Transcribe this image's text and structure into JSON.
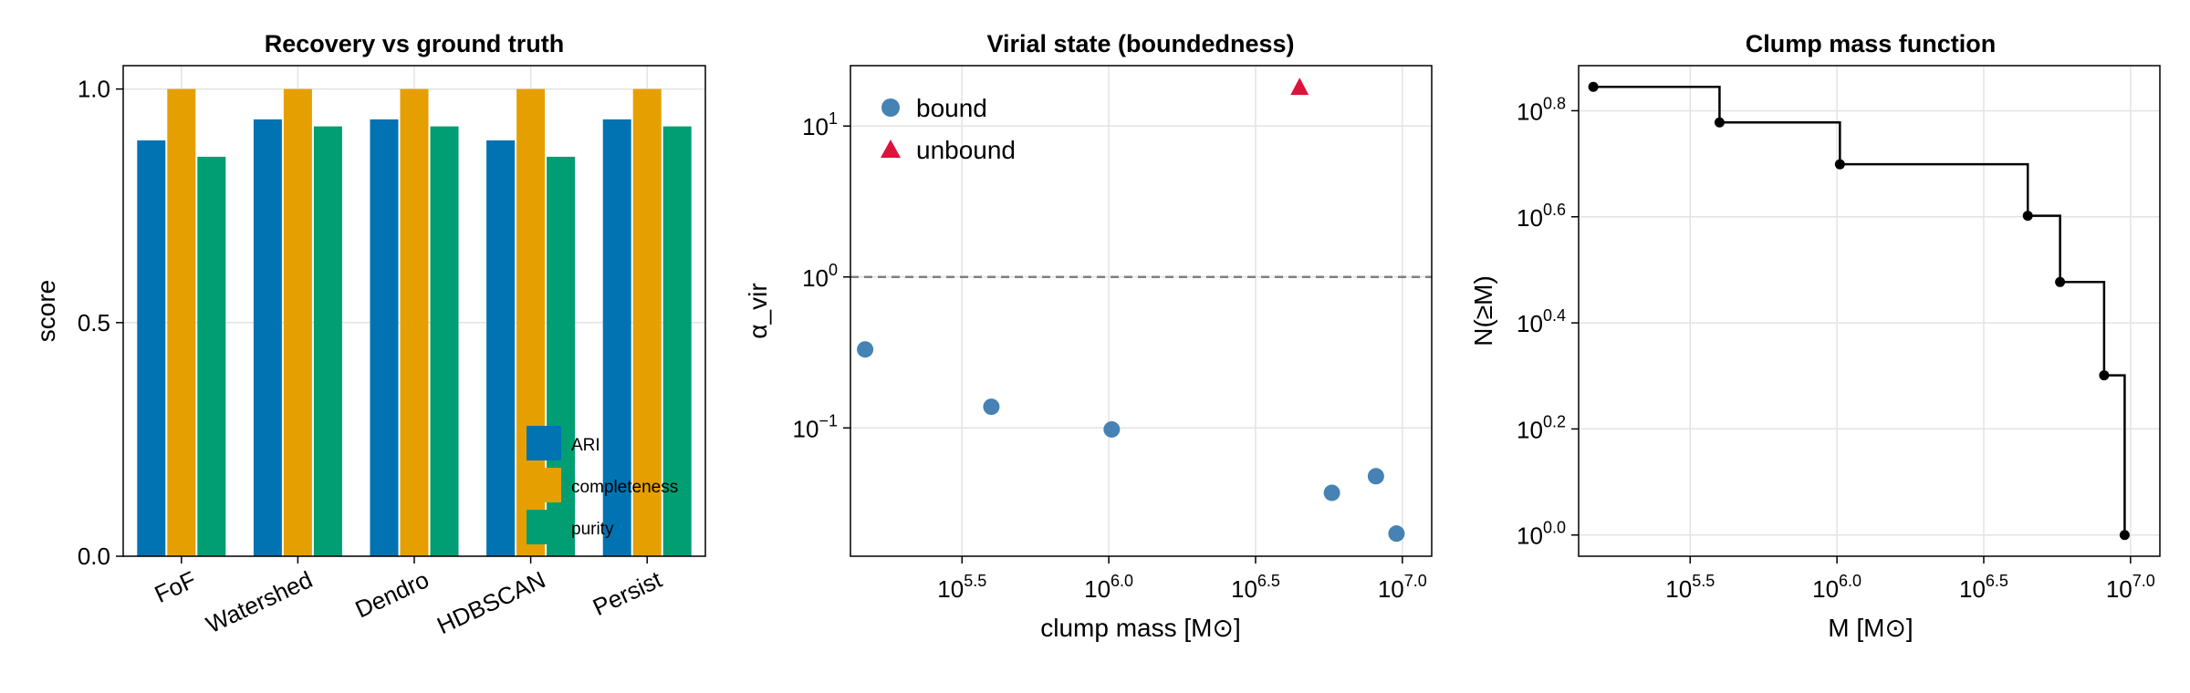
{
  "colors": {
    "ari": "#0173b2",
    "completeness": "#e69f00",
    "purity": "#029e73",
    "bound": "#4682b4",
    "unbound": "#dc143c",
    "step": "#000000",
    "threshold": "#808080"
  },
  "chart_data": [
    {
      "type": "bar",
      "title": "Recovery vs ground truth",
      "xlabel": "",
      "ylabel": "score",
      "ylim": [
        0,
        1.05
      ],
      "yticks": [
        0.0,
        0.5,
        1.0
      ],
      "ytick_labels": [
        "0.0",
        "0.5",
        "1.0"
      ],
      "categories": [
        "FoF",
        "Watershed",
        "Dendro",
        "HDBSCAN",
        "Persist"
      ],
      "series": [
        {
          "name": "ARI",
          "color": "#0173b2",
          "values": [
            0.89,
            0.935,
            0.935,
            0.89,
            0.935
          ]
        },
        {
          "name": "completeness",
          "color": "#e69f00",
          "values": [
            1.0,
            1.0,
            1.0,
            1.0,
            1.0
          ]
        },
        {
          "name": "purity",
          "color": "#029e73",
          "values": [
            0.855,
            0.92,
            0.92,
            0.855,
            0.92
          ]
        }
      ],
      "legend": "bottom-right",
      "grid": true
    },
    {
      "type": "scatter",
      "title": "Virial state (boundedness)",
      "xlabel": "clump mass [M⊙]",
      "ylabel": "α_vir",
      "x_scale": "log10",
      "y_scale": "log10",
      "xlim": [
        5.12,
        7.1
      ],
      "ylim": [
        -1.85,
        1.4
      ],
      "xticks": [
        5.5,
        6.0,
        6.5,
        7.0
      ],
      "xtick_labels": [
        {
          "base": "10",
          "exp": "5.5"
        },
        {
          "base": "10",
          "exp": "6.0"
        },
        {
          "base": "10",
          "exp": "6.5"
        },
        {
          "base": "10",
          "exp": "7.0"
        }
      ],
      "yticks": [
        -1,
        0,
        1
      ],
      "ytick_labels": [
        {
          "base": "10",
          "exp": "−1"
        },
        {
          "base": "10",
          "exp": "0"
        },
        {
          "base": "10",
          "exp": "1"
        }
      ],
      "threshold_alpha": 1,
      "series": [
        {
          "name": "bound",
          "marker": "circle",
          "color": "#4682b4",
          "log_mass": [
            5.17,
            5.6,
            6.01,
            6.76,
            6.91,
            6.98
          ],
          "log_alpha": [
            -0.48,
            -0.86,
            -1.01,
            -1.43,
            -1.32,
            -1.7
          ]
        },
        {
          "name": "unbound",
          "marker": "triangle",
          "color": "#dc143c",
          "log_mass": [
            6.65
          ],
          "log_alpha": [
            1.26
          ]
        }
      ],
      "legend": "top-left",
      "grid": true
    },
    {
      "type": "line",
      "title": "Clump mass function",
      "xlabel": "M [M⊙]",
      "ylabel": "N(≥M)",
      "x_scale": "log10",
      "y_scale": "log10",
      "xlim": [
        5.12,
        7.1
      ],
      "ylim": [
        -0.04,
        0.885
      ],
      "xticks": [
        5.5,
        6.0,
        6.5,
        7.0
      ],
      "xtick_labels": [
        {
          "base": "10",
          "exp": "5.5"
        },
        {
          "base": "10",
          "exp": "6.0"
        },
        {
          "base": "10",
          "exp": "6.5"
        },
        {
          "base": "10",
          "exp": "7.0"
        }
      ],
      "yticks": [
        0.0,
        0.2,
        0.4,
        0.6,
        0.8
      ],
      "ytick_labels": [
        {
          "base": "10",
          "exp": "0.0"
        },
        {
          "base": "10",
          "exp": "0.2"
        },
        {
          "base": "10",
          "exp": "0.4"
        },
        {
          "base": "10",
          "exp": "0.6"
        },
        {
          "base": "10",
          "exp": "0.8"
        }
      ],
      "log_mass": [
        5.17,
        5.6,
        6.01,
        6.65,
        6.76,
        6.91,
        6.98
      ],
      "log_count": [
        0.845,
        0.778,
        0.699,
        0.602,
        0.477,
        0.301,
        0.0
      ],
      "step": "post",
      "grid": true
    }
  ]
}
